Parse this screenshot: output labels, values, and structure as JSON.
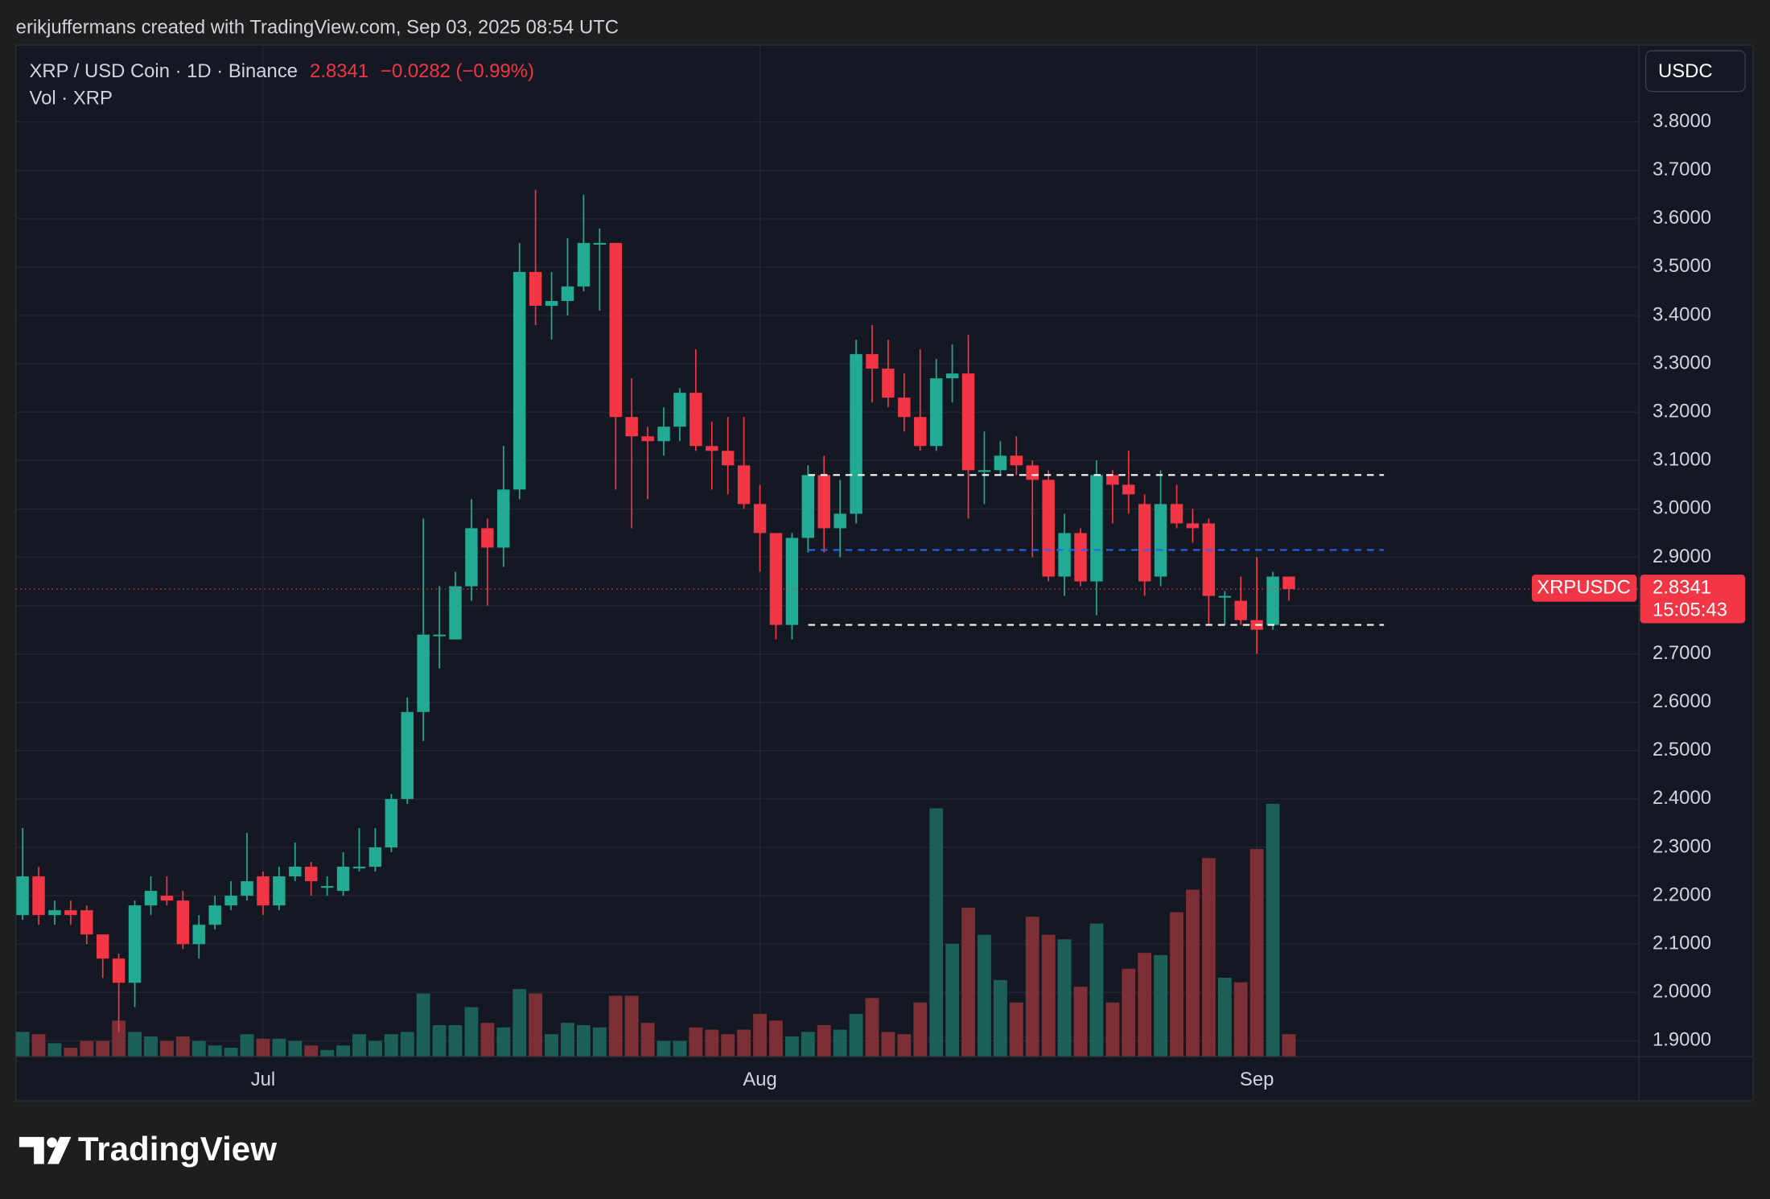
{
  "chart_data": {
    "type": "candlestick",
    "header": "erikjuffermans created with TradingView.com, Sep 03, 2025 08:54 UTC",
    "legend": {
      "symbol": "XRP / USD Coin · 1D · Binance",
      "change": "−0.0282 (−0.99%)",
      "volume_label": "Vol · XRP"
    },
    "currency": "USDC",
    "price_label": {
      "name": "XRPUSDC",
      "countdown": "15:05:43"
    },
    "brand": "TradingView",
    "last_price": 2.8341,
    "up_color": "#22ab94",
    "down_color": "#f23645",
    "volume_up_color": "#1d5f59",
    "volume_down_color": "#7c2f35",
    "grid": true,
    "ylim": [
      1.867,
      3.959
    ],
    "yticks": [
      {
        "value": 1.9,
        "label": "1.9000"
      },
      {
        "value": 2.0,
        "label": "2.0000"
      },
      {
        "value": 2.1,
        "label": "2.1000"
      },
      {
        "value": 2.2,
        "label": "2.2000"
      },
      {
        "value": 2.3,
        "label": "2.3000"
      },
      {
        "value": 2.4,
        "label": "2.4000"
      },
      {
        "value": 2.5,
        "label": "2.5000"
      },
      {
        "value": 2.6,
        "label": "2.6000"
      },
      {
        "value": 2.7,
        "label": "2.7000"
      },
      {
        "value": 2.8,
        "label": "2.8000"
      },
      {
        "value": 2.9,
        "label": "2.9000"
      },
      {
        "value": 3.0,
        "label": "3.0000"
      },
      {
        "value": 3.1,
        "label": "3.1000"
      },
      {
        "value": 3.2,
        "label": "3.2000"
      },
      {
        "value": 3.3,
        "label": "3.3000"
      },
      {
        "value": 3.4,
        "label": "3.4000"
      },
      {
        "value": 3.5,
        "label": "3.5000"
      },
      {
        "value": 3.6,
        "label": "3.6000"
      },
      {
        "value": 3.7,
        "label": "3.7000"
      },
      {
        "value": 3.8,
        "label": "3.8000"
      }
    ],
    "levels": [
      {
        "value": 3.07,
        "color": "#ffffff"
      },
      {
        "value": 2.915,
        "color": "#2962ff"
      },
      {
        "value": 2.76,
        "color": "#ffffff"
      }
    ],
    "categories": [
      null,
      null,
      null,
      null,
      null,
      null,
      null,
      null,
      null,
      null,
      null,
      null,
      null,
      null,
      null,
      "Jul",
      null,
      null,
      null,
      null,
      null,
      null,
      null,
      null,
      null,
      null,
      null,
      null,
      null,
      null,
      null,
      null,
      null,
      null,
      null,
      null,
      null,
      null,
      null,
      null,
      null,
      null,
      null,
      null,
      null,
      null,
      "Aug",
      null,
      null,
      null,
      null,
      null,
      null,
      null,
      null,
      null,
      null,
      null,
      null,
      null,
      null,
      null,
      null,
      null,
      null,
      null,
      null,
      null,
      null,
      null,
      null,
      null,
      null,
      null,
      null,
      null,
      null,
      "Sep",
      null,
      null
    ],
    "open": [
      2.16,
      2.24,
      2.16,
      2.17,
      2.17,
      2.12,
      2.07,
      2.02,
      2.18,
      2.2,
      2.19,
      2.1,
      2.14,
      2.18,
      2.2,
      2.24,
      2.18,
      2.24,
      2.26,
      2.22,
      2.21,
      2.26,
      2.26,
      2.3,
      2.4,
      2.58,
      2.74,
      2.73,
      2.84,
      2.96,
      2.92,
      3.04,
      3.49,
      3.42,
      3.43,
      3.46,
      3.55,
      3.55,
      3.19,
      3.15,
      3.14,
      3.17,
      3.24,
      3.13,
      3.12,
      3.09,
      3.01,
      2.95,
      2.76,
      2.94,
      3.07,
      2.96,
      2.99,
      3.32,
      3.29,
      3.23,
      3.19,
      3.13,
      3.27,
      3.28,
      3.08,
      3.08,
      3.11,
      3.09,
      3.06,
      2.86,
      2.95,
      2.85,
      3.07,
      3.05,
      3.01,
      2.86,
      3.01,
      2.97,
      2.97,
      2.82,
      2.81,
      2.77,
      2.76,
      2.86
    ],
    "high": [
      2.34,
      2.26,
      2.19,
      2.19,
      2.18,
      2.12,
      2.08,
      2.19,
      2.24,
      2.24,
      2.21,
      2.16,
      2.2,
      2.23,
      2.33,
      2.25,
      2.26,
      2.31,
      2.27,
      2.24,
      2.29,
      2.34,
      2.34,
      2.41,
      2.61,
      2.98,
      2.84,
      2.87,
      3.02,
      2.98,
      3.13,
      3.55,
      3.66,
      3.49,
      3.56,
      3.65,
      3.58,
      3.55,
      3.27,
      3.17,
      3.21,
      3.25,
      3.33,
      3.18,
      3.19,
      3.19,
      3.05,
      2.95,
      2.95,
      3.09,
      3.11,
      3.06,
      3.35,
      3.38,
      3.35,
      3.28,
      3.33,
      3.31,
      3.34,
      3.36,
      3.16,
      3.14,
      3.15,
      3.1,
      3.08,
      2.99,
      2.96,
      3.1,
      3.08,
      3.12,
      3.03,
      3.08,
      3.05,
      3.0,
      2.98,
      2.83,
      2.86,
      2.9,
      2.87,
      2.86
    ],
    "low": [
      2.15,
      2.14,
      2.14,
      2.14,
      2.1,
      2.03,
      1.917,
      1.97,
      2.16,
      2.18,
      2.09,
      2.07,
      2.13,
      2.17,
      2.19,
      2.16,
      2.17,
      2.23,
      2.2,
      2.2,
      2.2,
      2.25,
      2.25,
      2.29,
      2.39,
      2.52,
      2.67,
      2.73,
      2.81,
      2.8,
      2.88,
      3.02,
      3.38,
      3.35,
      3.4,
      3.45,
      3.41,
      3.04,
      2.96,
      3.02,
      3.11,
      3.14,
      3.12,
      3.04,
      3.03,
      3.0,
      2.87,
      2.73,
      2.73,
      2.91,
      2.91,
      2.9,
      2.97,
      3.22,
      3.21,
      3.16,
      3.12,
      3.12,
      3.22,
      2.98,
      3.01,
      3.07,
      3.07,
      2.9,
      2.85,
      2.82,
      2.84,
      2.78,
      2.97,
      2.99,
      2.82,
      2.84,
      2.96,
      2.93,
      2.76,
      2.76,
      2.76,
      2.7,
      2.75,
      2.81
    ],
    "close": [
      2.24,
      2.16,
      2.17,
      2.16,
      2.12,
      2.07,
      2.02,
      2.18,
      2.21,
      2.19,
      2.1,
      2.14,
      2.18,
      2.2,
      2.23,
      2.18,
      2.24,
      2.26,
      2.23,
      2.22,
      2.26,
      2.26,
      2.3,
      2.4,
      2.58,
      2.74,
      2.74,
      2.84,
      2.96,
      2.92,
      3.04,
      3.49,
      3.42,
      3.43,
      3.46,
      3.55,
      3.55,
      3.19,
      3.15,
      3.14,
      3.17,
      3.24,
      3.13,
      3.12,
      3.09,
      3.01,
      2.95,
      2.76,
      2.94,
      3.07,
      2.96,
      2.99,
      3.32,
      3.29,
      3.23,
      3.19,
      3.13,
      3.27,
      3.28,
      3.08,
      3.08,
      3.11,
      3.09,
      3.06,
      2.86,
      2.95,
      2.85,
      3.07,
      3.05,
      3.03,
      2.85,
      3.01,
      2.97,
      2.96,
      2.82,
      2.82,
      2.77,
      2.75,
      2.86,
      2.8341
    ],
    "volume": [
      22,
      20,
      12,
      8,
      14,
      14,
      32,
      22,
      18,
      14,
      18,
      14,
      10,
      8,
      20,
      16,
      16,
      14,
      10,
      6,
      10,
      20,
      14,
      20,
      22,
      56,
      28,
      28,
      44,
      30,
      26,
      60,
      56,
      20,
      30,
      28,
      26,
      54,
      54,
      30,
      14,
      14,
      26,
      24,
      20,
      24,
      38,
      32,
      18,
      22,
      28,
      24,
      38,
      52,
      22,
      20,
      48,
      220,
      100,
      132,
      108,
      68,
      48,
      124,
      108,
      104,
      62,
      118,
      48,
      78,
      92,
      90,
      128,
      148,
      176,
      70,
      66,
      184,
      224,
      20
    ]
  }
}
